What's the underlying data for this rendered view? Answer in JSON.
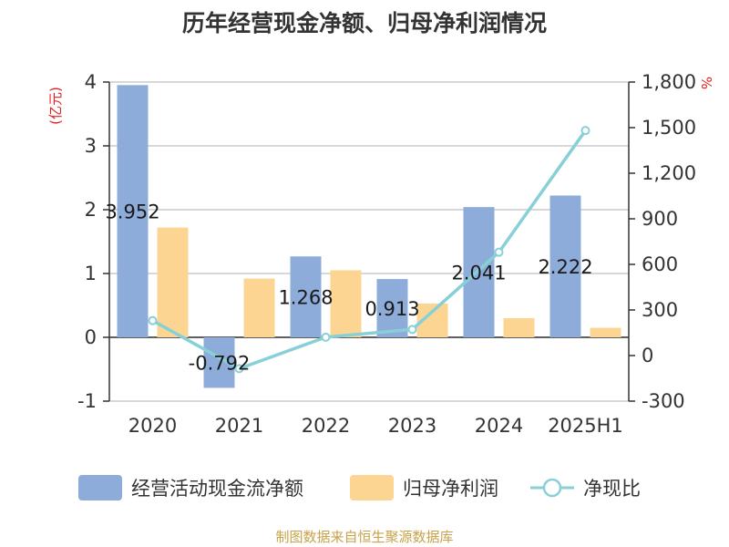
{
  "chart_data": {
    "type": "bar",
    "title": "历年经营现金净额、归母净利润情况",
    "source": "制图数据来自恒生聚源数据库",
    "categories": [
      "2020",
      "2021",
      "2022",
      "2023",
      "2024",
      "2025H1"
    ],
    "y_left": {
      "unit": "(亿元)",
      "min": -1,
      "max": 4,
      "ticks": [
        "-1",
        "0",
        "1",
        "2",
        "3",
        "4"
      ]
    },
    "y_right": {
      "unit": "%",
      "min": -300,
      "max": 1800,
      "ticks": [
        "-300",
        "0",
        "300",
        "600",
        "900",
        "1,200",
        "1,500",
        "1,800"
      ]
    },
    "series": [
      {
        "name": "经营活动现金流净额",
        "type": "bar",
        "axis": "left",
        "color": "#8eacd9",
        "values": [
          3.952,
          -0.792,
          1.268,
          0.913,
          2.041,
          2.222
        ],
        "labels": [
          "3.952",
          "-0.792",
          "1.268",
          "0.913",
          "2.041",
          "2.222"
        ]
      },
      {
        "name": "归母净利润",
        "type": "bar",
        "axis": "left",
        "color": "#fdd593",
        "values": [
          1.72,
          0.92,
          1.05,
          0.53,
          0.3,
          0.15
        ]
      },
      {
        "name": "净现比",
        "type": "line",
        "axis": "right",
        "color": "#88d0d8",
        "values": [
          230,
          -86,
          121,
          172,
          680,
          1481
        ]
      }
    ],
    "legend_position": "bottom",
    "grid": true
  }
}
